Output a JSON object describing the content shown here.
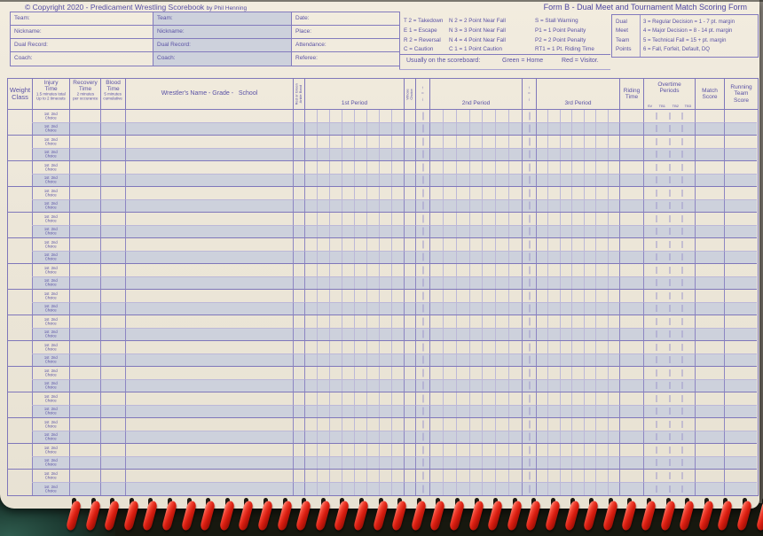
{
  "page": {
    "copyright_main": "© Copyright 2020 - Predicament Wrestling Scorebook",
    "copyright_by": "by Phil Henning",
    "form_title": "Form B - Dual Meet and Tournament Match Scoring Form"
  },
  "header_form": {
    "home_fields": [
      "Team:",
      "Nickname:",
      "Dual Record:",
      "Coach:"
    ],
    "visitor_fields": [
      "Team:",
      "Nickname:",
      "Dual Record:",
      "Coach:"
    ],
    "meta_fields": [
      "Date:",
      "Place:",
      "Attendance:",
      "Referee:"
    ]
  },
  "legend": {
    "moves": [
      "T 2 = Takedown",
      "E 1 = Escape",
      "R 2 = Reversal",
      "C = Caution"
    ],
    "near_falls": [
      "N 2 = 2 Point Near Fall",
      "N 3 = 3 Point Near Fall",
      "N 4 = 4 Point Near Fall",
      "C 1 = 1 Point Caution"
    ],
    "penalties": [
      "S = Stall Warning",
      "P1 = 1 Point Penalty",
      "P2 = 2 Point Penalty",
      "RT1 = 1 Pt. Riding Time"
    ],
    "team_points": {
      "labels": [
        "Dual",
        "Meet",
        "Team",
        "Points"
      ],
      "values": [
        "3 = Regular Decision = 1 - 7 pt. margin",
        "4 = Major Decision = 8 - 14 pt. margin",
        "5 = Technical Fall = 15 + pt. margin",
        "6 = Fall, Forfeit, Default, DQ"
      ]
    },
    "scoreboard_note": "Usually on the scoreboard:",
    "scoreboard_green": "Green = Home",
    "scoreboard_red": "Red = Visitor."
  },
  "table": {
    "headers": {
      "weight": "Weight\nClass",
      "injury_title": "Injury\nTime",
      "injury_note": "1.5 minutes total\nUp to 2 timeouts",
      "recovery_title": "Recovery\nTime",
      "recovery_note": "2 minutes\nper occurance",
      "blood_title": "Blood\nTime",
      "blood_note": "5 minutes\ncumulative",
      "name": "Wrestler's Name - Grade -   School",
      "ankle_band": "Red or Green\nAnkle Band",
      "period1": "1st Period",
      "whose_choice": "Whose\nChoice",
      "choice_arrows": "↑\n=\n↓",
      "period2": "2nd Period",
      "period3": "3rd Period",
      "riding": "Riding\nTime",
      "overtime_title": "Overtime\nPeriods",
      "overtime_cols": [
        "SV",
        "TB1",
        "TB2",
        "TB3"
      ],
      "match": "Match\nScore",
      "running": "Running\nTeam\nScore"
    },
    "rows": {
      "count": 15,
      "choice_label": "1st  2nd\nChoice"
    }
  }
}
